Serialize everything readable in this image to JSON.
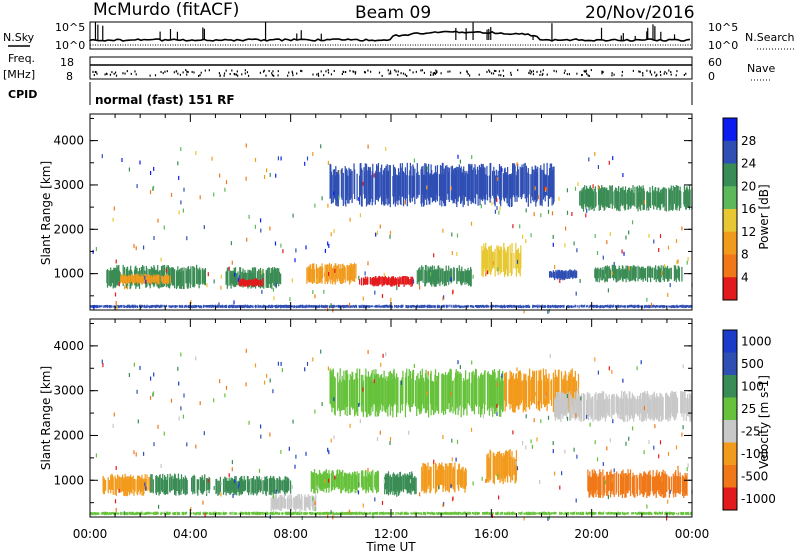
{
  "header": {
    "station": "McMurdo (fitACF)",
    "beam": "Beam 09",
    "date": "20/Nov/2016"
  },
  "status_panels": {
    "nsky_label": "N.Sky",
    "nsky_ticks": [
      "10^5",
      "10^0"
    ],
    "nsearch_label": "N.Search",
    "nsearch_ticks": [
      "10^5",
      "10^0"
    ],
    "freq_label": "Freq.",
    "freq_unit": "[MHz]",
    "freq_ticks": [
      "18",
      "8"
    ],
    "nave_label": "Nave",
    "nave_ticks": [
      "60",
      "0"
    ],
    "cpid_label": "CPID",
    "cpid_value": "normal (fast) 151 RF"
  },
  "chart_data": [
    {
      "type": "heatmap",
      "name": "power",
      "ylabel": "Slant Range [km]",
      "xlabel": "",
      "ylim": [
        180,
        4600
      ],
      "yticks": [
        "1000",
        "2000",
        "3000",
        "4000"
      ],
      "ytick_values": [
        1000,
        2000,
        3000,
        4000
      ],
      "xticks": [
        "00:00",
        "04:00",
        "08:00",
        "12:00",
        "16:00",
        "20:00",
        "00:00"
      ],
      "colorbar": {
        "label": "Power [dB]",
        "ticks": [
          "4",
          "8",
          "12",
          "16",
          "20",
          "24",
          "28"
        ],
        "colors": [
          "#0a1cf0",
          "#2f4fb4",
          "#3a8c55",
          "#5cb85a",
          "#e8c832",
          "#f29a1c",
          "#f07818",
          "#e31a1c"
        ]
      },
      "regions": [
        {
          "t0": 0.6,
          "t1": 4.6,
          "r0": 650,
          "r1": 1200,
          "color": "#3a8c55"
        },
        {
          "t0": 1.2,
          "t1": 3.2,
          "r0": 750,
          "r1": 1000,
          "color": "#f29a1c"
        },
        {
          "t0": 5.4,
          "t1": 7.6,
          "r0": 650,
          "r1": 1150,
          "color": "#3a8c55"
        },
        {
          "t0": 5.9,
          "t1": 6.9,
          "r0": 700,
          "r1": 900,
          "color": "#e31a1c"
        },
        {
          "t0": 8.6,
          "t1": 10.6,
          "r0": 750,
          "r1": 1250,
          "color": "#f29a1c"
        },
        {
          "t0": 10.7,
          "t1": 12.9,
          "r0": 700,
          "r1": 950,
          "color": "#e31a1c"
        },
        {
          "t0": 13.0,
          "t1": 15.2,
          "r0": 700,
          "r1": 1200,
          "color": "#3a8c55"
        },
        {
          "t0": 15.6,
          "t1": 17.2,
          "r0": 900,
          "r1": 1700,
          "color": "#e8c832"
        },
        {
          "t0": 18.3,
          "t1": 19.4,
          "r0": 850,
          "r1": 1100,
          "color": "#2f4fb4"
        },
        {
          "t0": 20.1,
          "t1": 23.6,
          "r0": 800,
          "r1": 1200,
          "color": "#3a8c55"
        },
        {
          "t0": 9.5,
          "t1": 18.5,
          "r0": 2500,
          "r1": 3500,
          "color": "#2f4fb4"
        },
        {
          "t0": 19.5,
          "t1": 24.0,
          "r0": 2400,
          "r1": 3000,
          "color": "#3a8c55"
        },
        {
          "t0": 0.0,
          "t1": 24.0,
          "r0": 220,
          "r1": 300,
          "color": "#2f4fb4"
        }
      ]
    },
    {
      "type": "heatmap",
      "name": "velocity",
      "ylabel": "Slant Range [km]",
      "xlabel": "Time UT",
      "ylim": [
        180,
        4600
      ],
      "yticks": [
        "1000",
        "2000",
        "3000",
        "4000"
      ],
      "ytick_values": [
        1000,
        2000,
        3000,
        4000
      ],
      "xticks": [
        "00:00",
        "04:00",
        "08:00",
        "12:00",
        "16:00",
        "20:00",
        "00:00"
      ],
      "colorbar": {
        "label": "Velocity [m s-1]",
        "ticks": [
          "1000",
          "500",
          "100",
          "25",
          "-25",
          "-100",
          "-500",
          "-1000"
        ],
        "colors": [
          "#1a3cc8",
          "#2f4fb4",
          "#3a8c55",
          "#66c23a",
          "#c8c8c8",
          "#f29a1c",
          "#f07818",
          "#e31a1c"
        ]
      },
      "regions": [
        {
          "t0": 0.5,
          "t1": 2.4,
          "r0": 650,
          "r1": 1150,
          "color": "#f29a1c"
        },
        {
          "t0": 2.4,
          "t1": 4.8,
          "r0": 650,
          "r1": 1150,
          "color": "#3a8c55"
        },
        {
          "t0": 5.0,
          "t1": 8.0,
          "r0": 650,
          "r1": 1100,
          "color": "#3a8c55"
        },
        {
          "t0": 8.8,
          "t1": 11.5,
          "r0": 700,
          "r1": 1250,
          "color": "#66c23a"
        },
        {
          "t0": 11.7,
          "t1": 13.0,
          "r0": 650,
          "r1": 1200,
          "color": "#3a8c55"
        },
        {
          "t0": 13.2,
          "t1": 15.0,
          "r0": 700,
          "r1": 1400,
          "color": "#f29a1c"
        },
        {
          "t0": 15.8,
          "t1": 17.0,
          "r0": 900,
          "r1": 1700,
          "color": "#f29a1c"
        },
        {
          "t0": 19.8,
          "t1": 23.8,
          "r0": 600,
          "r1": 1250,
          "color": "#f07818"
        },
        {
          "t0": 7.2,
          "t1": 9.0,
          "r0": 300,
          "r1": 700,
          "color": "#c8c8c8"
        },
        {
          "t0": 9.5,
          "t1": 16.5,
          "r0": 2400,
          "r1": 3500,
          "color": "#66c23a"
        },
        {
          "t0": 16.5,
          "t1": 19.5,
          "r0": 2500,
          "r1": 3500,
          "color": "#f29a1c"
        },
        {
          "t0": 18.5,
          "t1": 24.0,
          "r0": 2300,
          "r1": 3000,
          "color": "#c8c8c8"
        },
        {
          "t0": 0.0,
          "t1": 24.0,
          "r0": 220,
          "r1": 300,
          "color": "#66c23a"
        }
      ]
    }
  ]
}
